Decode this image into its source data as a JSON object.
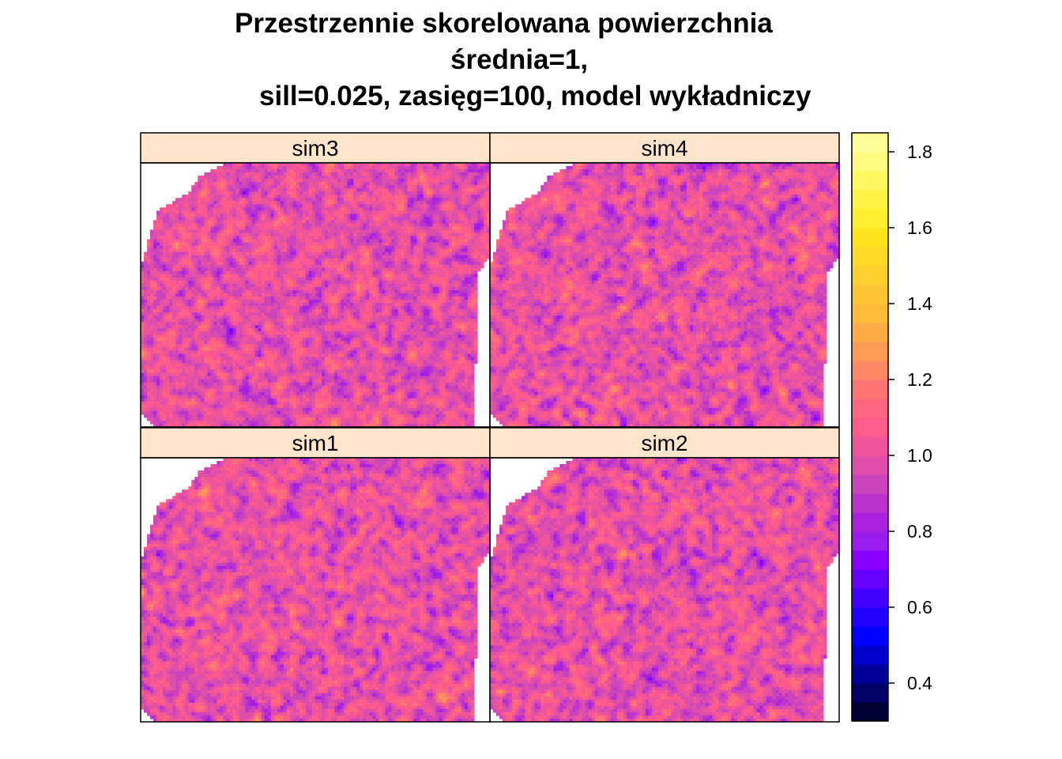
{
  "title_lines": [
    "Przestrzennie skorelowana powierzchnia",
    "średnia=1,",
    "sill=0.025, zasięg=100, model wykładniczy"
  ],
  "chart_data": {
    "type": "heatmap",
    "title": "Przestrzennie skorelowana powierzchnia średnia=1, sill=0.025, zasięg=100, model wykładniczy",
    "panels": [
      {
        "name": "sim3",
        "position": "top-left"
      },
      {
        "name": "sim4",
        "position": "top-right"
      },
      {
        "name": "sim1",
        "position": "bottom-left"
      },
      {
        "name": "sim2",
        "position": "bottom-right"
      }
    ],
    "layout": "2x2",
    "value_mean": 1.0,
    "value_range": [
      0.3,
      1.85
    ],
    "colorbar": {
      "placement": "right",
      "ticks": [
        0.4,
        0.6,
        0.8,
        1.0,
        1.2,
        1.4,
        1.6,
        1.8
      ],
      "tick_labels": [
        "0.4",
        "0.6",
        "0.8",
        "1.0",
        "1.2",
        "1.4",
        "1.6",
        "1.8"
      ],
      "breaks": [
        0.3,
        0.35,
        0.4,
        0.45,
        0.5,
        0.55,
        0.6,
        0.65,
        0.7,
        0.75,
        0.8,
        0.85,
        0.9,
        0.95,
        1.0,
        1.05,
        1.1,
        1.15,
        1.2,
        1.25,
        1.3,
        1.35,
        1.4,
        1.45,
        1.5,
        1.55,
        1.6,
        1.65,
        1.7,
        1.75,
        1.8,
        1.85
      ],
      "colors": [
        "#000033",
        "#000066",
        "#000099",
        "#0000CC",
        "#0000FF",
        "#2200FF",
        "#4400FF",
        "#6600FF",
        "#8800FF",
        "#9A1BEE",
        "#AA22DD",
        "#BB33CC",
        "#CC44BB",
        "#DD4FAA",
        "#EE559A",
        "#FF5B8D",
        "#FF6680",
        "#FF7575",
        "#FF8866",
        "#FF9B55",
        "#FFAB48",
        "#FFB93B",
        "#FFC535",
        "#FFD02E",
        "#FFDA26",
        "#FFE420",
        "#FFEE30",
        "#FFF445",
        "#FFF860",
        "#FFFB80",
        "#FFFF99"
      ]
    },
    "strip_color": "#FFE5CC",
    "grid": false
  }
}
